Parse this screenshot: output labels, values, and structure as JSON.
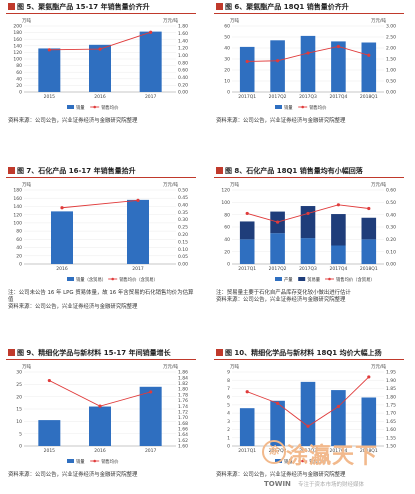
{
  "colors": {
    "bar": "#2f6fc0",
    "bar_dark": "#1f3d7a",
    "line": "#e03b3b",
    "title_rule": "#c0392b"
  },
  "source_text": "资料来源：公司公告，兴业证券经济与金融研究院整理",
  "panels": [
    {
      "title": "图 5、聚氨酯产品 15-17 年销售量价齐升",
      "note": ""
    },
    {
      "title": "图 6、聚氨酯产品 18Q1 销售量价齐升",
      "note": ""
    },
    {
      "title": "图 7、石化产品 16-17 年销售量拾升",
      "note": "注：公司未公告 16 年 LPG 贸易体量，故 16 年含贸易的石化销售均价为估算值"
    },
    {
      "title": "图 8、石化产品 18Q1 销售量均有小幅回落",
      "note": "注：贸易量主要于石化自产品库存变化较小做出进行估计"
    },
    {
      "title": "图 9、精细化学品与新材料 15-17 年间销量增长",
      "note": ""
    },
    {
      "title": "图 10、精细化学品与新材料 18Q1 均价大幅上扬",
      "note": ""
    }
  ],
  "chart_data": [
    {
      "type": "bar",
      "title": "图 5、聚氨酯产品 15-17 年销售量价齐升",
      "unit_left": "万吨",
      "unit_right": "万元/吨",
      "categories": [
        "2015",
        "2016",
        "2017"
      ],
      "series": [
        {
          "name": "销量",
          "type": "bar",
          "values": [
            132,
            143,
            183
          ]
        },
        {
          "name": "销售均价",
          "type": "line",
          "axis": "right",
          "values": [
            1.15,
            1.17,
            1.63
          ]
        }
      ],
      "ylim": [
        0,
        200
      ],
      "y_ticks": [
        0,
        20,
        40,
        60,
        80,
        100,
        120,
        140,
        160,
        180,
        200
      ],
      "y2lim": [
        0,
        1.8
      ],
      "y2_ticks": [
        "0.00",
        "0.20",
        "0.40",
        "0.60",
        "0.80",
        "1.00",
        "1.20",
        "1.40",
        "1.60",
        "1.80"
      ]
    },
    {
      "type": "bar",
      "title": "图 6、聚氨酯产品 18Q1 销售量价齐升",
      "unit_left": "万吨",
      "unit_right": "万元/吨",
      "categories": [
        "2017Q1",
        "2017Q2",
        "2017Q3",
        "2017Q4",
        "2018Q1"
      ],
      "series": [
        {
          "name": "销量",
          "type": "bar",
          "values": [
            41,
            47,
            51,
            46,
            45
          ]
        },
        {
          "name": "销售均价",
          "type": "line",
          "axis": "right",
          "values": [
            1.39,
            1.42,
            1.77,
            2.07,
            1.67
          ]
        }
      ],
      "ylim": [
        0,
        60
      ],
      "y_ticks": [
        0,
        10,
        20,
        30,
        40,
        50,
        60
      ],
      "y2lim": [
        0,
        3.0
      ],
      "y2_ticks": [
        "0.00",
        "0.50",
        "1.00",
        "1.50",
        "2.00",
        "2.50",
        "3.00"
      ]
    },
    {
      "type": "bar",
      "title": "图 7、石化产品 16-17 年销售量拾升",
      "unit_left": "万吨",
      "unit_right": "万元/吨",
      "categories": [
        "2016",
        "2017"
      ],
      "series": [
        {
          "name": "销量（含贸易）",
          "type": "bar",
          "values": [
            128,
            156
          ]
        },
        {
          "name": "销售均价（含贸易）",
          "type": "line",
          "axis": "right",
          "values": [
            0.38,
            0.43
          ]
        }
      ],
      "ylim": [
        0,
        180
      ],
      "y_ticks": [
        0,
        20,
        40,
        60,
        80,
        100,
        120,
        140,
        160,
        180
      ],
      "y2lim": [
        0,
        0.5
      ],
      "y2_ticks": [
        "0.00",
        "0.05",
        "0.10",
        "0.15",
        "0.20",
        "0.25",
        "0.30",
        "0.35",
        "0.40",
        "0.45",
        "0.50"
      ]
    },
    {
      "type": "bar",
      "title": "图 8、石化产品 18Q1 销售量均有小幅回落",
      "unit_left": "万吨",
      "unit_right": "万元/吨",
      "categories": [
        "2017Q1",
        "2017Q2",
        "2017Q3",
        "2017Q4",
        "2018Q1"
      ],
      "series": [
        {
          "name": "产量",
          "type": "bar",
          "stack": "s",
          "values": [
            40,
            50,
            42,
            30,
            40
          ]
        },
        {
          "name": "贸易量",
          "type": "bar",
          "stack": "s",
          "values": [
            29,
            35,
            52,
            51,
            35
          ]
        },
        {
          "name": "销售均价（含贸易）",
          "type": "line",
          "axis": "right",
          "values": [
            0.41,
            0.34,
            0.41,
            0.48,
            0.45
          ]
        }
      ],
      "ylim": [
        0,
        120
      ],
      "y_ticks": [
        0,
        20,
        40,
        60,
        80,
        100,
        120
      ],
      "y2lim": [
        0,
        0.6
      ],
      "y2_ticks": [
        "0.00",
        "0.10",
        "0.20",
        "0.30",
        "0.40",
        "0.50",
        "0.60"
      ]
    },
    {
      "type": "bar",
      "title": "图 9、精细化学品与新材料 15-17 年间销量增长",
      "unit_left": "万吨",
      "unit_right": "万元/吨",
      "categories": [
        "2015",
        "2016",
        "2017"
      ],
      "series": [
        {
          "name": "销量",
          "type": "bar",
          "values": [
            10.5,
            16,
            24
          ]
        },
        {
          "name": "销售均价",
          "type": "line",
          "axis": "right",
          "values": [
            1.83,
            1.74,
            1.79
          ]
        }
      ],
      "ylim": [
        0,
        30
      ],
      "y_ticks": [
        0,
        5,
        10,
        15,
        20,
        25,
        30
      ],
      "y2lim": [
        1.6,
        1.86
      ],
      "y2_ticks": [
        "1.60",
        "1.62",
        "1.64",
        "1.66",
        "1.68",
        "1.70",
        "1.72",
        "1.74",
        "1.76",
        "1.78",
        "1.80",
        "1.82",
        "1.84",
        "1.86"
      ]
    },
    {
      "type": "bar",
      "title": "图 10、精细化学品与新材料 18Q1 均价大幅上扬",
      "unit_left": "万吨",
      "unit_right": "万元/吨",
      "categories": [
        "2017Q1",
        "2017Q2",
        "2017Q3",
        "2017Q4",
        "2018Q1"
      ],
      "series": [
        {
          "name": "销量",
          "type": "bar",
          "values": [
            4.6,
            5.5,
            7.8,
            6.8,
            5.9
          ]
        },
        {
          "name": "销售均价",
          "type": "line",
          "axis": "right",
          "values": [
            1.83,
            1.76,
            1.62,
            1.74,
            1.92
          ]
        }
      ],
      "ylim": [
        0,
        9
      ],
      "y_ticks": [
        0,
        1,
        2,
        3,
        4,
        5,
        6,
        7,
        8,
        9
      ],
      "y2lim": [
        1.5,
        1.95
      ],
      "y2_ticks": [
        "1.50",
        "1.55",
        "1.60",
        "1.65",
        "1.70",
        "1.75",
        "1.80",
        "1.85",
        "1.90",
        "1.95"
      ]
    }
  ],
  "watermark": {
    "seal": "涂",
    "big": "涂瀛天下",
    "brand": "TOWIN",
    "sub": "专注于资本市场的财经媒体"
  }
}
